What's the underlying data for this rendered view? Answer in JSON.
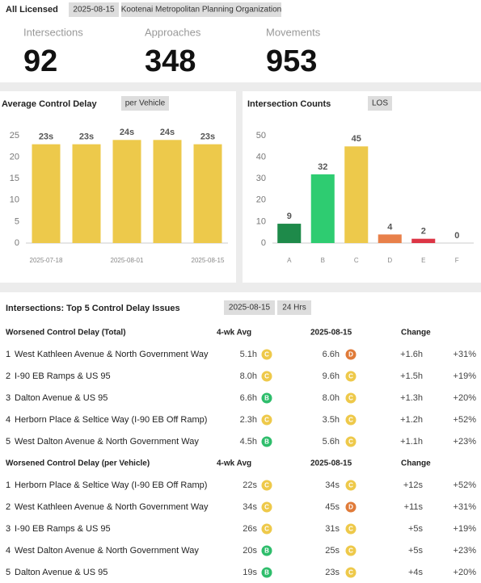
{
  "header": {
    "title": "All Licensed",
    "badges": [
      "2025-08-15",
      "Kootenai Metropolitan Planning Organization"
    ]
  },
  "stats": [
    {
      "label": "Intersections",
      "value": 92
    },
    {
      "label": "Approaches",
      "value": 348
    },
    {
      "label": "Movements",
      "value": 953
    }
  ],
  "chart_data": [
    {
      "type": "bar",
      "title": "Average Control Delay",
      "badge": "per Vehicle",
      "categories": [
        "2025-07-18",
        null,
        "2025-08-01",
        null,
        "2025-08-15"
      ],
      "values": [
        23,
        23,
        24,
        24,
        23
      ],
      "value_labels": [
        "23s",
        "23s",
        "24s",
        "24s",
        "23s"
      ],
      "color": "#edc94b",
      "ylim": [
        0,
        25
      ],
      "yticks": [
        0,
        5,
        10,
        15,
        20,
        25
      ]
    },
    {
      "type": "bar",
      "title": "Intersection Counts",
      "badge": "LOS",
      "categories": [
        "A",
        "B",
        "C",
        "D",
        "E",
        "F"
      ],
      "values": [
        9,
        32,
        45,
        4,
        2,
        0
      ],
      "colors": [
        "#1e8a4a",
        "#2ecc71",
        "#edc94b",
        "#e8804a",
        "#dc3545",
        "#999999"
      ],
      "ylim": [
        0,
        50
      ],
      "yticks": [
        0,
        10,
        20,
        30,
        40,
        50
      ]
    }
  ],
  "table": {
    "title": "Intersections: Top 5 Control Delay Issues",
    "badges": [
      "2025-08-15",
      "24 Hrs"
    ],
    "los_colors": {
      "B": "#2ebd6b",
      "C": "#eec94a",
      "D": "#e07b39"
    },
    "sections": [
      {
        "title": "Worsened Control Delay (Total)",
        "columns": [
          "4-wk Avg",
          "2025-08-15",
          "Change"
        ],
        "rows": [
          {
            "rank": 1,
            "name": "West Kathleen Avenue & North Government Way",
            "avg": "5.1h",
            "avg_los": "C",
            "day": "6.6h",
            "day_los": "D",
            "change": "+1.6h",
            "pct": "+31%"
          },
          {
            "rank": 2,
            "name": "I-90 EB Ramps & US 95",
            "avg": "8.0h",
            "avg_los": "C",
            "day": "9.6h",
            "day_los": "C",
            "change": "+1.5h",
            "pct": "+19%"
          },
          {
            "rank": 3,
            "name": "Dalton Avenue & US 95",
            "avg": "6.6h",
            "avg_los": "B",
            "day": "8.0h",
            "day_los": "C",
            "change": "+1.3h",
            "pct": "+20%"
          },
          {
            "rank": 4,
            "name": "Herborn Place & Seltice Way (I-90 EB Off Ramp)",
            "avg": "2.3h",
            "avg_los": "C",
            "day": "3.5h",
            "day_los": "C",
            "change": "+1.2h",
            "pct": "+52%"
          },
          {
            "rank": 5,
            "name": "West Dalton Avenue & North Government Way",
            "avg": "4.5h",
            "avg_los": "B",
            "day": "5.6h",
            "day_los": "C",
            "change": "+1.1h",
            "pct": "+23%"
          }
        ]
      },
      {
        "title": "Worsened Control Delay (per Vehicle)",
        "columns": [
          "4-wk Avg",
          "2025-08-15",
          "Change"
        ],
        "rows": [
          {
            "rank": 1,
            "name": "Herborn Place & Seltice Way (I-90 EB Off Ramp)",
            "avg": "22s",
            "avg_los": "C",
            "day": "34s",
            "day_los": "C",
            "change": "+12s",
            "pct": "+52%"
          },
          {
            "rank": 2,
            "name": "West Kathleen Avenue & North Government Way",
            "avg": "34s",
            "avg_los": "C",
            "day": "45s",
            "day_los": "D",
            "change": "+11s",
            "pct": "+31%"
          },
          {
            "rank": 3,
            "name": "I-90 EB Ramps & US 95",
            "avg": "26s",
            "avg_los": "C",
            "day": "31s",
            "day_los": "C",
            "change": "+5s",
            "pct": "+19%"
          },
          {
            "rank": 4,
            "name": "West Dalton Avenue & North Government Way",
            "avg": "20s",
            "avg_los": "B",
            "day": "25s",
            "day_los": "C",
            "change": "+5s",
            "pct": "+23%"
          },
          {
            "rank": 5,
            "name": "Dalton Avenue & US 95",
            "avg": "19s",
            "avg_los": "B",
            "day": "23s",
            "day_los": "C",
            "change": "+4s",
            "pct": "+20%"
          }
        ]
      }
    ]
  }
}
